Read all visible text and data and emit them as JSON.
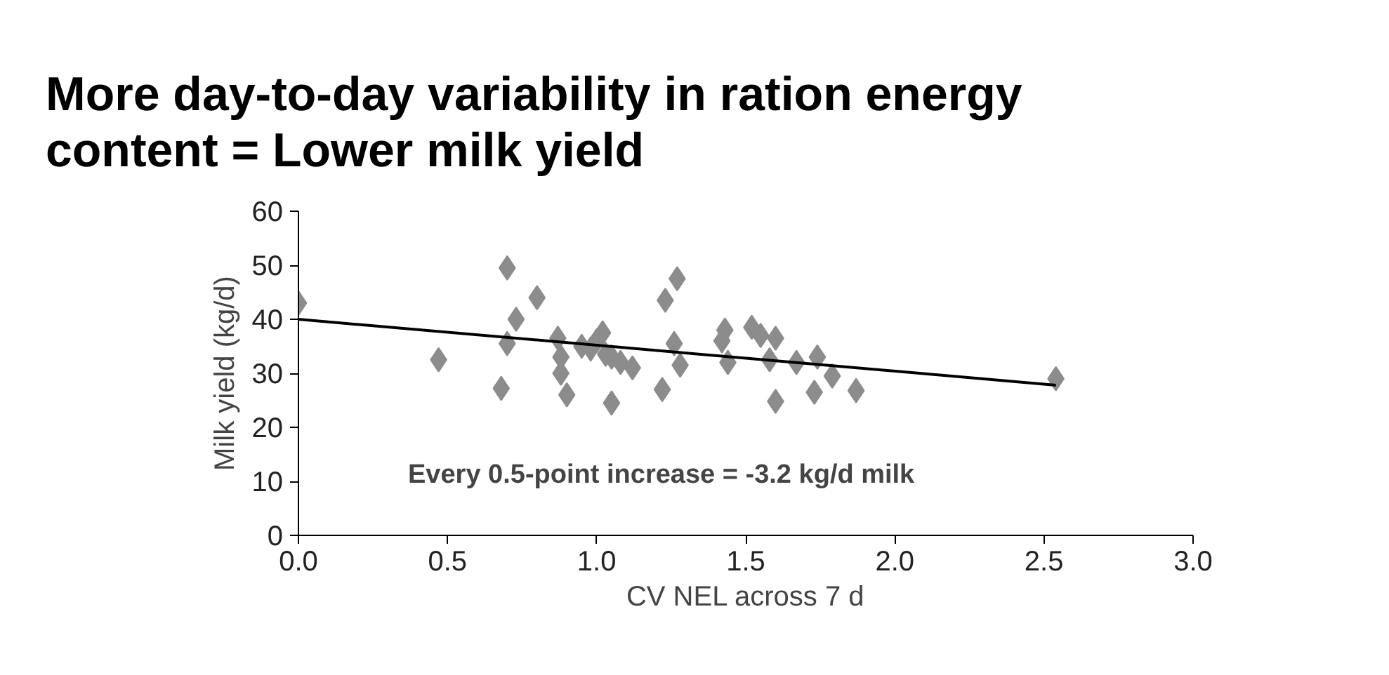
{
  "chart_data": {
    "type": "scatter",
    "title": "More day-to-day variability in ration energy\ncontent = Lower milk yield",
    "xlabel": "CV NEL across 7 d",
    "ylabel": "Milk yield (kg/d)",
    "annotations": [
      "Every 0.5-point increase = -3.2 kg/d milk"
    ],
    "xlim": [
      0,
      3
    ],
    "xticks": [
      {
        "value": 0,
        "label": "0.0"
      },
      {
        "value": 0.5,
        "label": "0.5"
      },
      {
        "value": 1,
        "label": "1.0"
      },
      {
        "value": 1.5,
        "label": "1.5"
      },
      {
        "value": 2,
        "label": "2.0"
      },
      {
        "value": 2.5,
        "label": "2.5"
      },
      {
        "value": 3,
        "label": "3.0"
      }
    ],
    "ylim": [
      0,
      60
    ],
    "yticks": [
      0,
      10,
      20,
      30,
      40,
      50,
      60
    ],
    "grid": false,
    "series": [
      {
        "marker": "diamond",
        "color": "#8c8c8c",
        "x": [
          0.0,
          0.47,
          0.68,
          0.7,
          0.7,
          0.73,
          0.8,
          0.87,
          0.88,
          0.88,
          0.9,
          0.95,
          0.98,
          1.0,
          1.02,
          1.03,
          1.05,
          1.05,
          1.08,
          1.12,
          1.22,
          1.23,
          1.27,
          1.26,
          1.28,
          1.42,
          1.43,
          1.44,
          1.52,
          1.55,
          1.58,
          1.6,
          1.6,
          1.67,
          1.73,
          1.74,
          1.79,
          1.87,
          2.54
        ],
        "values": [
          43,
          32.5,
          27.2,
          49.5,
          35.5,
          40,
          44,
          36.5,
          33,
          30,
          26,
          35,
          34.5,
          36,
          37.5,
          33.5,
          33,
          24.5,
          32,
          31,
          27,
          43.5,
          47.5,
          35.5,
          31.5,
          36,
          38,
          32,
          38.5,
          37,
          32.5,
          36.5,
          24.8,
          32,
          26.5,
          33,
          29.5,
          26.8,
          29
        ]
      },
      {
        "type": "line",
        "color": "#000000",
        "x": [
          0,
          2.54
        ],
        "values": [
          40,
          27.8
        ]
      }
    ]
  }
}
